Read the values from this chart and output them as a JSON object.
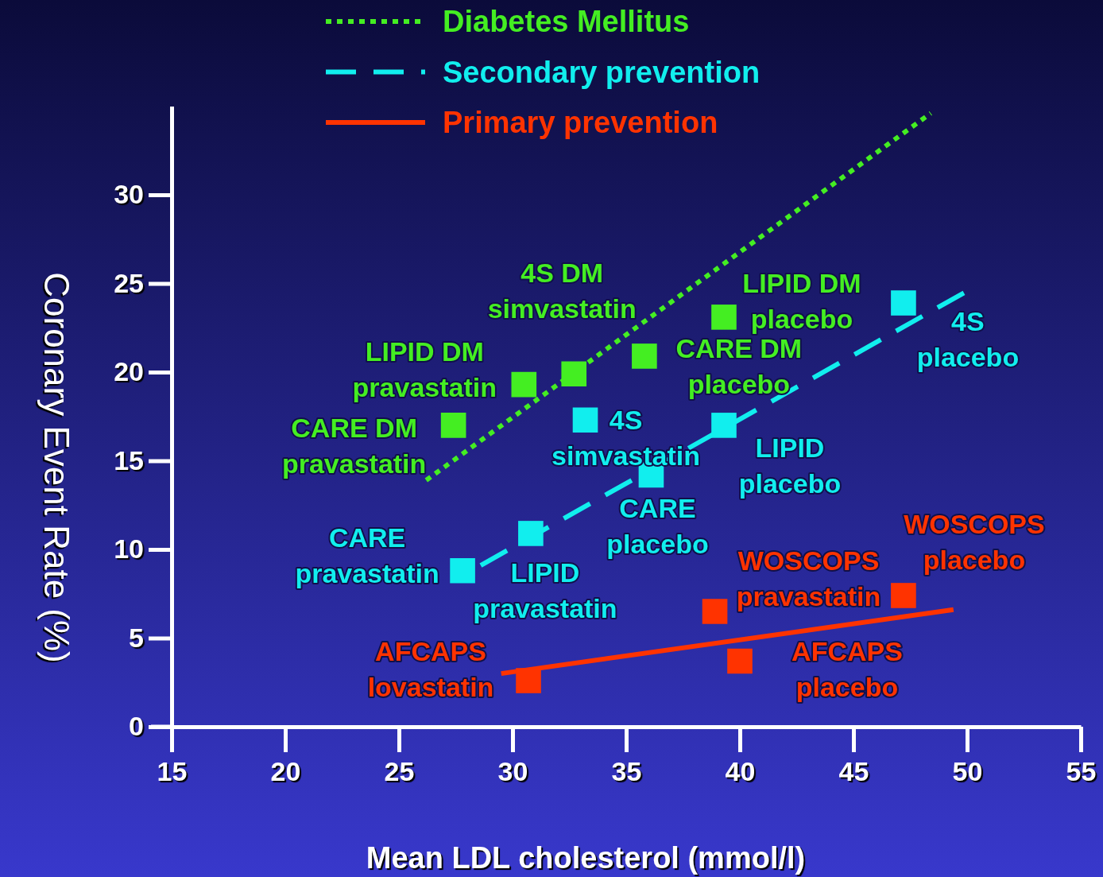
{
  "chart_data": {
    "type": "scatter",
    "xlabel": "Mean LDL cholesterol (mmol/l)",
    "ylabel": "Coronary Event Rate (%)",
    "xlim": [
      15,
      55
    ],
    "xticks": [
      15,
      20,
      25,
      30,
      35,
      40,
      45,
      50,
      55
    ],
    "ylim": [
      0,
      35
    ],
    "yticks": [
      0,
      5,
      10,
      15,
      20,
      25,
      30
    ],
    "legend": "top",
    "grid": false,
    "series": [
      {
        "marker": "square",
        "color": "#44ee22",
        "x": [
          27.4,
          30.5,
          32.7,
          35.8,
          39.3
        ],
        "values": [
          17.0,
          19.3,
          19.9,
          20.9,
          23.1
        ]
      },
      {
        "marker": "square",
        "color": "#11eeee",
        "x": [
          27.8,
          30.8,
          33.2,
          36.1,
          39.3,
          47.2
        ],
        "values": [
          8.8,
          10.9,
          17.3,
          14.2,
          17.0,
          23.9
        ]
      },
      {
        "marker": "square",
        "color": "#ff3300",
        "x": [
          30.7,
          40.0,
          38.9,
          47.2
        ],
        "values": [
          2.6,
          3.7,
          6.5,
          7.4
        ]
      },
      {
        "type": "line",
        "marker": "none",
        "name": "Diabetes Mellitus",
        "color": "#44ee22",
        "line_style": "dotted",
        "x": [
          26.2,
          48.4
        ],
        "values": [
          13.9,
          34.6
        ]
      },
      {
        "type": "line",
        "marker": "none",
        "name": "Secondary prevention",
        "color": "#11eeee",
        "line_style": "dashed",
        "x": [
          28.6,
          49.9
        ],
        "values": [
          9.1,
          24.5
        ]
      },
      {
        "type": "line",
        "marker": "none",
        "name": "Primary prevention",
        "color": "#ff3300",
        "line_style": "solid",
        "x": [
          29.5,
          49.4
        ],
        "values": [
          3.0,
          6.6
        ]
      }
    ],
    "annotations": [
      {
        "text": "CARE DM\npravastatin",
        "x": 27.4,
        "y": 17.0
      },
      {
        "text": "LIPID DM\npravastatin",
        "x": 30.5,
        "y": 19.3
      },
      {
        "text": "4S DM\nsimvastatin",
        "x": 32.7,
        "y": 19.9
      },
      {
        "text": "CARE DM\nplacebo",
        "x": 35.8,
        "y": 20.9
      },
      {
        "text": "LIPID DM\nplacebo",
        "x": 39.3,
        "y": 23.1
      },
      {
        "text": "CARE\npravastatin",
        "x": 27.8,
        "y": 8.8
      },
      {
        "text": "LIPID\npravastatin",
        "x": 30.8,
        "y": 10.9
      },
      {
        "text": "4S\nsimvastatin",
        "x": 33.2,
        "y": 17.3
      },
      {
        "text": "CARE\nplacebo",
        "x": 36.1,
        "y": 14.2
      },
      {
        "text": "LIPID\nplacebo",
        "x": 39.3,
        "y": 17.0
      },
      {
        "text": "4S\nplacebo",
        "x": 47.2,
        "y": 23.9
      },
      {
        "text": "AFCAPS\nlovastatin",
        "x": 30.7,
        "y": 2.6
      },
      {
        "text": "AFCAPS\nplacebo",
        "x": 40.0,
        "y": 3.7
      },
      {
        "text": "WOSCOPS\npravastatin",
        "x": 38.9,
        "y": 6.5
      },
      {
        "text": "WOSCOPS\nplacebo",
        "x": 47.2,
        "y": 7.4
      }
    ]
  }
}
